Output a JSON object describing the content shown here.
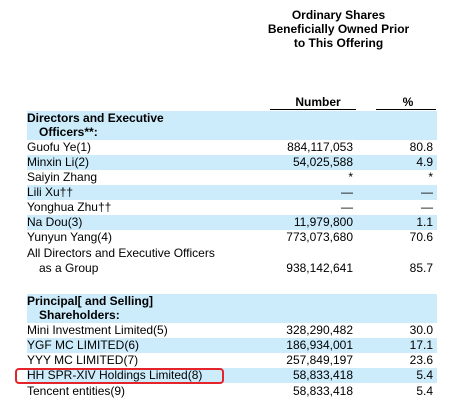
{
  "header": {
    "title_line1": "Ordinary Shares",
    "title_line2": "Beneficially Owned Prior",
    "title_line3": "to This Offering",
    "col_number": "Number",
    "col_percent": "%"
  },
  "sections": {
    "directors_line1": "Directors and Executive",
    "directors_line2": "Officers**:",
    "principal_line1": "Principal[ and Selling]",
    "principal_line2": "Shareholders:"
  },
  "directors": [
    {
      "name": "Guofu Ye",
      "note": "(1)",
      "number": "884,117,053",
      "percent": "80.8"
    },
    {
      "name": "Minxin Li",
      "note": "(2)",
      "number": "54,025,588",
      "percent": "4.9"
    },
    {
      "name": "Saiyin Zhang",
      "note": "",
      "number": "*",
      "percent": "*"
    },
    {
      "name": "Lili Xu††",
      "note": "",
      "number": "—",
      "percent": "—"
    },
    {
      "name": "Yonghua Zhu††",
      "note": "",
      "number": "—",
      "percent": "—"
    },
    {
      "name": "Na Dou",
      "note": "(3)",
      "number": "11,979,800",
      "percent": "1.1"
    },
    {
      "name": "Yunyun Yang",
      "note": "(4)",
      "number": "773,073,680",
      "percent": "70.6"
    }
  ],
  "group": {
    "line1": "All Directors and Executive Officers",
    "line2": "as a Group",
    "number": "938,142,641",
    "percent": "85.7"
  },
  "shareholders": [
    {
      "name": "Mini Investment Limited",
      "note": "(5)",
      "number": "328,290,482",
      "percent": "30.0"
    },
    {
      "name": "YGF MC LIMITED",
      "note": "(6)",
      "number": "186,934,001",
      "percent": "17.1"
    },
    {
      "name": "YYY MC LIMITED",
      "note": "(7)",
      "number": "257,849,197",
      "percent": "23.6"
    },
    {
      "name": "HH SPR-XIV Holdings Limited",
      "note": "(8)",
      "number": "58,833,418",
      "percent": "5.4"
    },
    {
      "name": "Tencent entities",
      "note": "(9)",
      "number": "58,833,418",
      "percent": "5.4"
    }
  ],
  "colors": {
    "band": "#ccebfb",
    "highlight": "#e4232b"
  }
}
